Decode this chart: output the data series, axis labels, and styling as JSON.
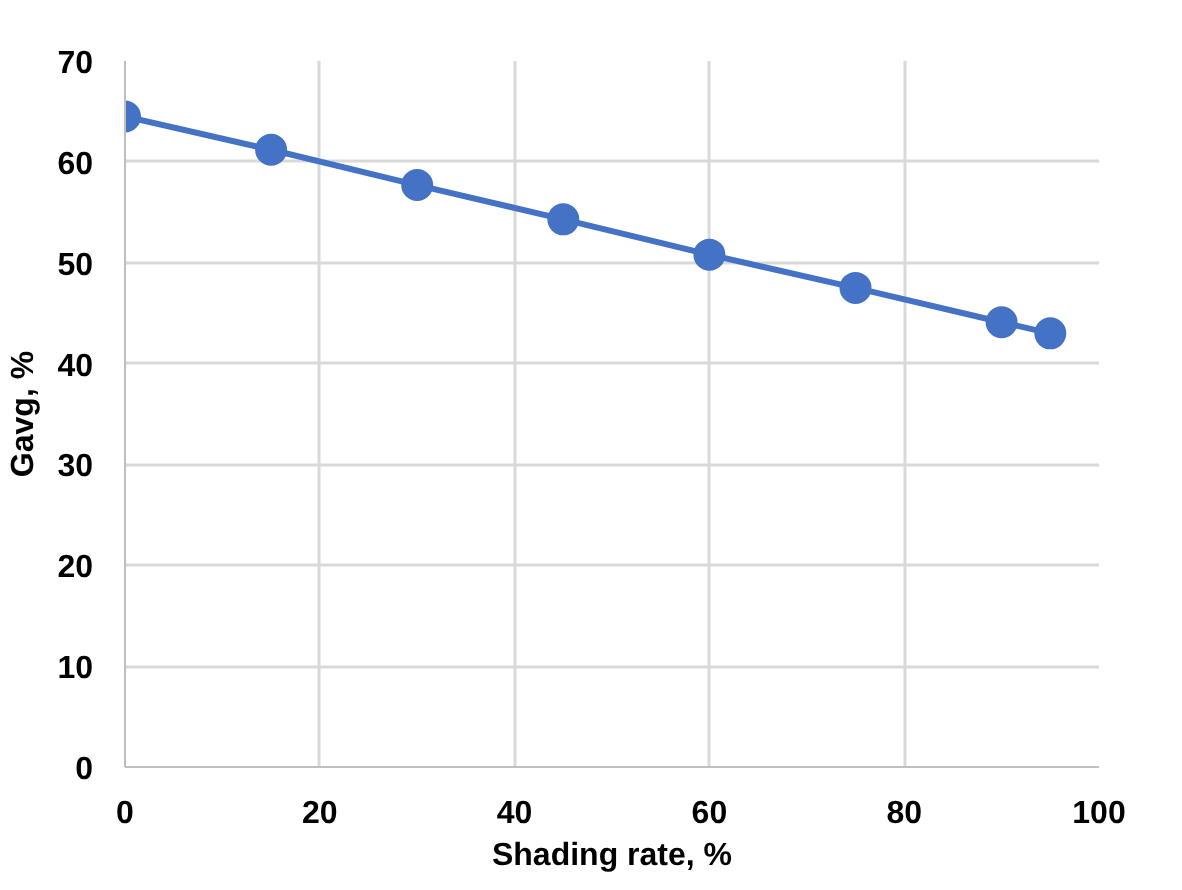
{
  "chart_data": {
    "type": "line",
    "xlabel": "Shading rate, %",
    "ylabel": "Gavg, %",
    "x": [
      0,
      15,
      30,
      45,
      60,
      75,
      90,
      95
    ],
    "series": [
      {
        "color": "#4472c4",
        "values": [
          64.5,
          61.2,
          57.7,
          54.3,
          50.8,
          47.5,
          44.1,
          43.0
        ]
      }
    ],
    "xlim": [
      0,
      100
    ],
    "xticks": [
      0,
      20,
      40,
      60,
      80,
      100
    ],
    "ylim": [
      0,
      70
    ],
    "yticks": [
      0,
      10,
      20,
      30,
      40,
      50,
      60,
      70
    ],
    "grid": true,
    "marker": "circle",
    "line_style": "solid"
  }
}
